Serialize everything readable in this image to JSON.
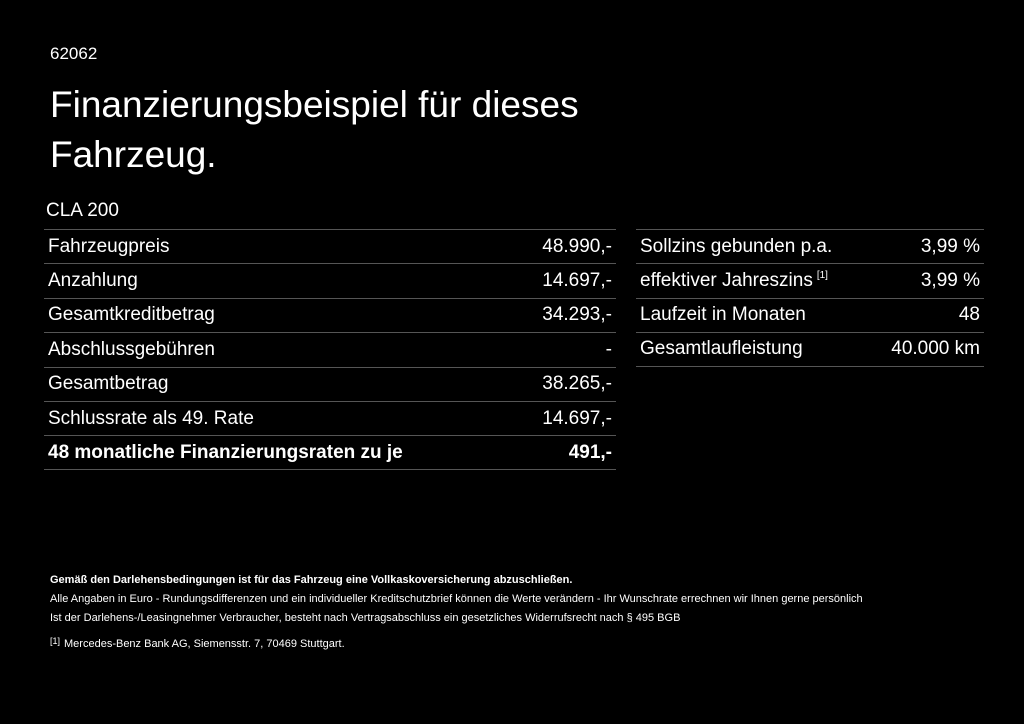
{
  "header": {
    "code": "62062",
    "title": "Finanzierungsbeispiel für dieses Fahrzeug.",
    "model": "CLA 200"
  },
  "left_table": {
    "rows": [
      [
        "Fahrzeugpreis",
        "48.990,-"
      ],
      [
        "Anzahlung",
        "14.697,-"
      ],
      [
        "Gesamtkreditbetrag",
        "34.293,-"
      ],
      [
        "Abschlussgebühren",
        "-"
      ],
      [
        "Gesamtbetrag",
        "38.265,-"
      ],
      [
        "Schlussrate als 49. Rate",
        "14.697,-"
      ],
      [
        "48 monatliche Finanzierungsraten zu je",
        "491,-"
      ]
    ]
  },
  "right_table": {
    "rows": [
      [
        "Sollzins gebunden p.a.",
        "3,99 %"
      ],
      [
        "effektiver Jahreszins",
        "3,99 %"
      ],
      [
        "Laufzeit in Monaten",
        "48"
      ],
      [
        "Gesamtlaufleistung",
        "40.000 km"
      ]
    ],
    "ref": "[1]"
  },
  "notes": {
    "bold": "Gemäß den Darlehensbedingungen ist für das Fahrzeug eine Vollkaskoversicherung abzuschließen.",
    "lines": [
      "Alle Angaben in Euro - Rundungsdifferenzen und ein individueller Kreditschutzbrief können die Werte verändern - Ihr Wunschrate errechnen wir Ihnen gerne persönlich",
      "Ist der Darlehens-/Leasingnehmer Verbraucher, besteht nach Vertragsabschluss ein gesetzliches Widerrufsrecht nach § 495 BGB"
    ],
    "footnote": {
      "mark": "[1]",
      "text": "Mercedes-Benz Bank AG, Siemensstr. 7, 70469 Stuttgart."
    }
  }
}
